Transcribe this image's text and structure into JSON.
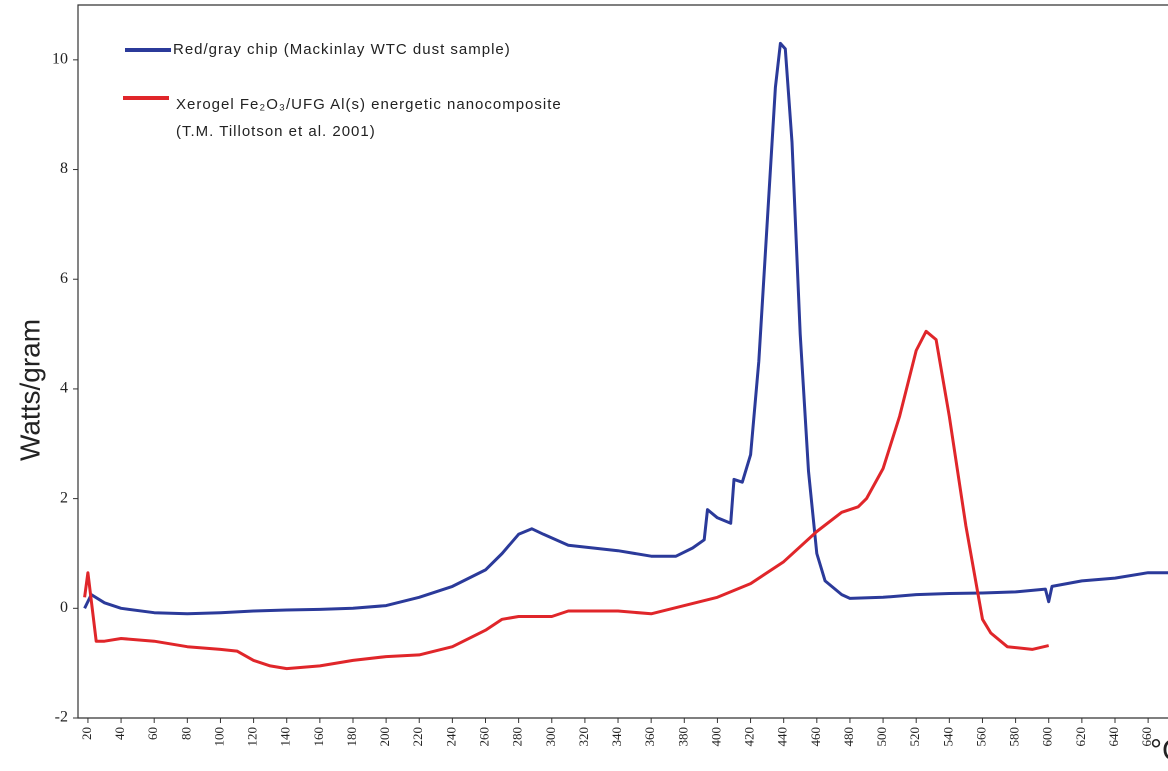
{
  "chart_data": {
    "type": "line",
    "y_label": "Watts/gram",
    "x_label": "°C",
    "xlim": [
      14,
      672
    ],
    "ylim": [
      -2,
      11
    ],
    "xticks": [
      20,
      40,
      60,
      80,
      100,
      120,
      140,
      160,
      180,
      200,
      220,
      240,
      260,
      280,
      300,
      320,
      340,
      360,
      380,
      400,
      420,
      440,
      460,
      480,
      500,
      520,
      540,
      560,
      580,
      600,
      620,
      640,
      660
    ],
    "yticks": [
      -2,
      0,
      2,
      4,
      6,
      8,
      10
    ],
    "series": [
      {
        "name": "Red/gray chip (Mackinlay WTC dust sample)",
        "color": "#2b3a9a",
        "x": [
          18,
          22,
          30,
          40,
          60,
          80,
          100,
          120,
          140,
          160,
          180,
          200,
          220,
          240,
          260,
          270,
          280,
          288,
          295,
          310,
          340,
          360,
          375,
          385,
          392,
          394,
          400,
          408,
          410,
          415,
          420,
          425,
          430,
          435,
          438,
          441,
          445,
          450,
          455,
          460,
          465,
          475,
          480,
          500,
          520,
          540,
          560,
          580,
          598,
          600,
          602,
          620,
          640,
          660,
          672
        ],
        "values": [
          0.0,
          0.25,
          0.1,
          0.0,
          -0.08,
          -0.1,
          -0.08,
          -0.05,
          -0.03,
          -0.02,
          0.0,
          0.05,
          0.2,
          0.4,
          0.7,
          1.0,
          1.35,
          1.45,
          1.35,
          1.15,
          1.05,
          0.95,
          0.95,
          1.1,
          1.25,
          1.8,
          1.65,
          1.55,
          2.35,
          2.3,
          2.8,
          4.5,
          7.0,
          9.5,
          10.3,
          10.2,
          8.5,
          5.0,
          2.5,
          1.0,
          0.5,
          0.25,
          0.18,
          0.2,
          0.25,
          0.27,
          0.28,
          0.3,
          0.35,
          0.12,
          0.4,
          0.5,
          0.55,
          0.65,
          0.65
        ]
      },
      {
        "name": "Xerogel Fe₂O₃/UFG Al(s) energetic nanocomposite\n(T.M. Tillotson et al. 2001)",
        "color": "#e0262a",
        "x": [
          18,
          20,
          25,
          30,
          40,
          60,
          80,
          100,
          110,
          120,
          130,
          140,
          160,
          180,
          200,
          220,
          240,
          260,
          270,
          280,
          300,
          310,
          340,
          360,
          380,
          400,
          420,
          440,
          460,
          475,
          485,
          490,
          500,
          510,
          520,
          526,
          532,
          540,
          550,
          560,
          565,
          575,
          590,
          600
        ],
        "values": [
          0.2,
          0.65,
          -0.6,
          -0.6,
          -0.55,
          -0.6,
          -0.7,
          -0.75,
          -0.78,
          -0.95,
          -1.05,
          -1.1,
          -1.05,
          -0.95,
          -0.88,
          -0.85,
          -0.7,
          -0.4,
          -0.2,
          -0.15,
          -0.15,
          -0.05,
          -0.05,
          -0.1,
          0.05,
          0.2,
          0.45,
          0.85,
          1.4,
          1.75,
          1.85,
          2.0,
          2.55,
          3.5,
          4.7,
          5.05,
          4.9,
          3.5,
          1.5,
          -0.2,
          -0.45,
          -0.7,
          -0.75,
          -0.68
        ]
      }
    ]
  }
}
